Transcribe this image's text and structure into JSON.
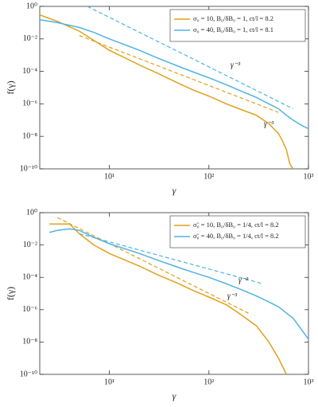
{
  "chart_data": [
    {
      "type": "line",
      "xlabel": "γ",
      "ylabel": "f(γ)",
      "xscale": "log",
      "yscale": "log",
      "xlim": [
        2,
        1000
      ],
      "ylim": [
        1e-10,
        1
      ],
      "xticks": [
        {
          "value": 10,
          "label": "10¹"
        },
        {
          "value": 100,
          "label": "10²"
        },
        {
          "value": 1000,
          "label": "10³"
        }
      ],
      "yticks": [
        {
          "value": 1e-10,
          "label": "10⁻¹⁰"
        },
        {
          "value": 1e-08,
          "label": "10⁻⁸"
        },
        {
          "value": 1e-06,
          "label": "10⁻⁶"
        },
        {
          "value": 0.0001,
          "label": "10⁻⁴"
        },
        {
          "value": 0.01,
          "label": "10⁻²"
        },
        {
          "value": 1,
          "label": "10⁰"
        }
      ],
      "legend": "upper right",
      "series": [
        {
          "name": "σ₀ = 10, B₀/δB₀ = 1, ct/l = 8.2",
          "color": "#e0a11b",
          "x": [
            2,
            3,
            5,
            7,
            10,
            20,
            30,
            50,
            70,
            100,
            150,
            200,
            300,
            400,
            500,
            550,
            600,
            650,
            700
          ],
          "values": [
            0.3,
            0.12,
            0.03,
            0.008,
            0.002,
            0.00025,
            8e-05,
            1.8e-05,
            7e-06,
            3e-06,
            1e-06,
            5e-07,
            2e-07,
            6e-08,
            1.5e-08,
            5e-09,
            1.5e-09,
            2e-10,
            1e-10
          ]
        },
        {
          "name": "σ₀ = 40, B₀/δB₀ = 1, ct/l = 8.1",
          "color": "#4fb3e3",
          "x": [
            2,
            3,
            5,
            7,
            10,
            20,
            30,
            50,
            70,
            100,
            150,
            200,
            300,
            400,
            500,
            600,
            700,
            800,
            900,
            1000
          ],
          "values": [
            0.15,
            0.1,
            0.05,
            0.025,
            0.01,
            0.002,
            0.0007,
            0.0002,
            9e-05,
            4e-05,
            1.5e-05,
            7e-06,
            2.5e-06,
            1e-06,
            5e-07,
            2e-07,
            1e-07,
            6e-08,
            4e-08,
            3e-08
          ]
        }
      ],
      "reference_lines": [
        {
          "color": "#4fb3e3",
          "x": [
            6,
            700
          ],
          "values": [
            1,
            5e-07
          ]
        },
        {
          "color": "#e0a11b",
          "x": [
            5,
            500
          ],
          "values": [
            0.016,
            3e-07
          ]
        }
      ],
      "annotations": [
        "γ⁻³",
        "γ⁻³"
      ]
    },
    {
      "type": "line",
      "xlabel": "γ",
      "ylabel": "f(γ)",
      "xscale": "log",
      "yscale": "log",
      "xlim": [
        2,
        1000
      ],
      "ylim": [
        1e-10,
        1
      ],
      "xticks": [
        {
          "value": 10,
          "label": "10¹"
        },
        {
          "value": 100,
          "label": "10²"
        },
        {
          "value": 1000,
          "label": "10³"
        }
      ],
      "yticks": [
        {
          "value": 1e-10,
          "label": "10⁻¹⁰"
        },
        {
          "value": 1e-08,
          "label": "10⁻⁸"
        },
        {
          "value": 1e-06,
          "label": "10⁻⁶"
        },
        {
          "value": 0.0001,
          "label": "10⁻⁴"
        },
        {
          "value": 0.01,
          "label": "10⁻²"
        },
        {
          "value": 1,
          "label": "10⁰"
        }
      ],
      "legend": "upper right",
      "series": [
        {
          "name": "σ̃₀ = 10, B₀/δB₀ = 1/4, ct/l = 8.2",
          "color": "#e0a11b",
          "x": [
            2.5,
            3,
            4,
            5,
            7,
            10,
            20,
            30,
            50,
            70,
            100,
            150,
            200,
            300,
            400,
            500,
            600
          ],
          "values": [
            0.2,
            0.2,
            0.2,
            0.05,
            0.01,
            0.003,
            0.0005,
            0.00015,
            4e-05,
            1.5e-05,
            6e-06,
            2e-06,
            6e-07,
            1e-07,
            1e-08,
            1e-09,
            1e-10
          ]
        },
        {
          "name": "σ̃₀ = 40, B₀/δB₀ = 1/4, ct/l = 8.2",
          "color": "#4fb3e3",
          "x": [
            2.5,
            3,
            4,
            5,
            7,
            10,
            20,
            30,
            50,
            70,
            100,
            150,
            200,
            300,
            400,
            500,
            700,
            1000
          ],
          "values": [
            0.06,
            0.08,
            0.1,
            0.08,
            0.03,
            0.012,
            0.003,
            0.0012,
            0.0004,
            0.0002,
            0.0001,
            4e-05,
            2e-05,
            7e-06,
            3e-06,
            1.5e-06,
            3e-07,
            1.5e-08
          ]
        }
      ],
      "reference_lines": [
        {
          "color": "#4fb3e3",
          "x": [
            5,
            350
          ],
          "values": [
            0.05,
            4e-05
          ]
        },
        {
          "color": "#e0a11b",
          "x": [
            3,
            250
          ],
          "values": [
            0.5,
            6e-07
          ]
        }
      ],
      "annotations": [
        "γ⁻²",
        "γ⁻³"
      ]
    }
  ]
}
